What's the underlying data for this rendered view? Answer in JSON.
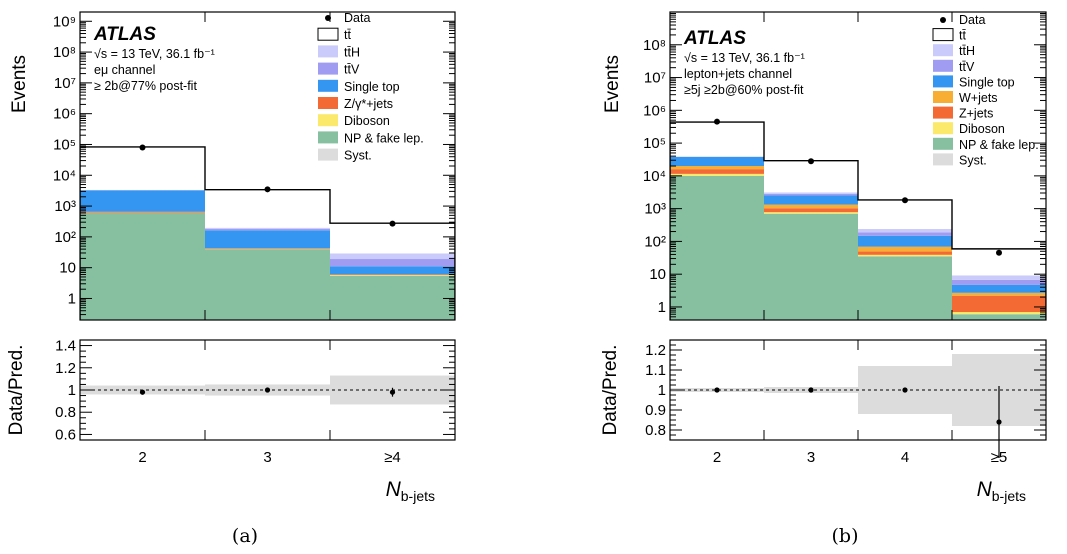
{
  "chart_data": [
    {
      "type": "bar",
      "panel_label": "(a)",
      "atlas_label": "ATLAS",
      "info_lines": [
        "√s = 13 TeV, 36.1 fb⁻¹",
        "eμ channel",
        "≥ 2b@77% post-fit"
      ],
      "xlabel": "N_b-jets",
      "ylabel": "Events",
      "ratio_ylabel": "Data/Pred.",
      "categories": [
        "2",
        "3",
        "≥4"
      ],
      "yscale": "log",
      "ylim": [
        0.2,
        2000000000
      ],
      "yticks": [
        "1",
        "10",
        "10²",
        "10³",
        "10⁴",
        "10⁵",
        "10⁶",
        "10⁷",
        "10⁸",
        "10⁹"
      ],
      "legend": [
        "Data",
        "tt̄",
        "tt̄H",
        "tt̄V",
        "Single top",
        "Z/γ*+jets",
        "Diboson",
        "NP & fake lep.",
        "Syst."
      ],
      "stack": [
        {
          "name": "NP & fake lep.",
          "color": "#86c0a0",
          "values": [
            600,
            40,
            5.5
          ]
        },
        {
          "name": "Diboson",
          "color": "#fae96a",
          "values": [
            10,
            1,
            0.3
          ]
        },
        {
          "name": "Z/γ*+jets",
          "color": "#f36a35",
          "values": [
            50,
            2,
            0.3
          ]
        },
        {
          "name": "Single top",
          "color": "#3596f2",
          "values": [
            2600,
            120,
            5
          ]
        },
        {
          "name": "tt̄V",
          "color": "#a09cf2",
          "values": [
            30,
            20,
            8
          ]
        },
        {
          "name": "tt̄H",
          "color": "#cacbfa",
          "values": [
            20,
            15,
            10
          ]
        },
        {
          "name": "tt̄",
          "color": "#ffffff",
          "values": [
            80000,
            3200,
            250
          ]
        }
      ],
      "data_points": [
        80000,
        3500,
        270
      ],
      "ratio": {
        "ylim": [
          0.55,
          1.45
        ],
        "yticks": [
          "0.6",
          "0.8",
          "1",
          "1.2",
          "1.4"
        ],
        "values": [
          0.98,
          1.0,
          0.98
        ],
        "errors": [
          0.0,
          0.0,
          0.04
        ],
        "syst": [
          0.04,
          0.05,
          0.13
        ]
      }
    },
    {
      "type": "bar",
      "panel_label": "(b)",
      "atlas_label": "ATLAS",
      "info_lines": [
        "√s = 13 TeV, 36.1 fb⁻¹",
        "lepton+jets channel",
        "≥5j  ≥2b@60% post-fit"
      ],
      "xlabel": "N_b-jets",
      "ylabel": "Events",
      "ratio_ylabel": "Data/Pred.",
      "categories": [
        "2",
        "3",
        "4",
        "≥5"
      ],
      "yscale": "log",
      "ylim": [
        0.4,
        1000000000
      ],
      "yticks": [
        "1",
        "10",
        "10²",
        "10³",
        "10⁴",
        "10⁵",
        "10⁶",
        "10⁷",
        "10⁸"
      ],
      "legend": [
        "Data",
        "tt̄",
        "tt̄H",
        "tt̄V",
        "Single top",
        "W+jets",
        "Z+jets",
        "Diboson",
        "NP & fake lep.",
        "Syst."
      ],
      "stack": [
        {
          "name": "NP & fake lep.",
          "color": "#86c0a0",
          "values": [
            10000,
            700,
            35,
            0.6
          ]
        },
        {
          "name": "Diboson",
          "color": "#fae96a",
          "values": [
            1500,
            80,
            4,
            0.1
          ]
        },
        {
          "name": "Z+jets",
          "color": "#f36a35",
          "values": [
            4500,
            250,
            10,
            1.5
          ]
        },
        {
          "name": "W+jets",
          "color": "#f7ae33",
          "values": [
            4000,
            300,
            20,
            0.5
          ]
        },
        {
          "name": "Single top",
          "color": "#3596f2",
          "values": [
            18000,
            1200,
            80,
            2
          ]
        },
        {
          "name": "tt̄V",
          "color": "#a09cf2",
          "values": [
            500,
            300,
            40,
            2
          ]
        },
        {
          "name": "tt̄H",
          "color": "#cacbfa",
          "values": [
            300,
            300,
            50,
            2.5
          ]
        },
        {
          "name": "tt̄",
          "color": "#ffffff",
          "values": [
            400000,
            26000,
            1600,
            50
          ]
        }
      ],
      "data_points": [
        450000,
        28000,
        1800,
        45
      ],
      "ratio": {
        "ylim": [
          0.75,
          1.25
        ],
        "yticks": [
          "0.8",
          "0.9",
          "1",
          "1.1",
          "1.2"
        ],
        "values": [
          1.0,
          1.0,
          1.0,
          0.84
        ],
        "errors": [
          0.0,
          0.0,
          0.01,
          0.18
        ],
        "syst": [
          0.01,
          0.015,
          0.12,
          0.18
        ]
      }
    }
  ]
}
